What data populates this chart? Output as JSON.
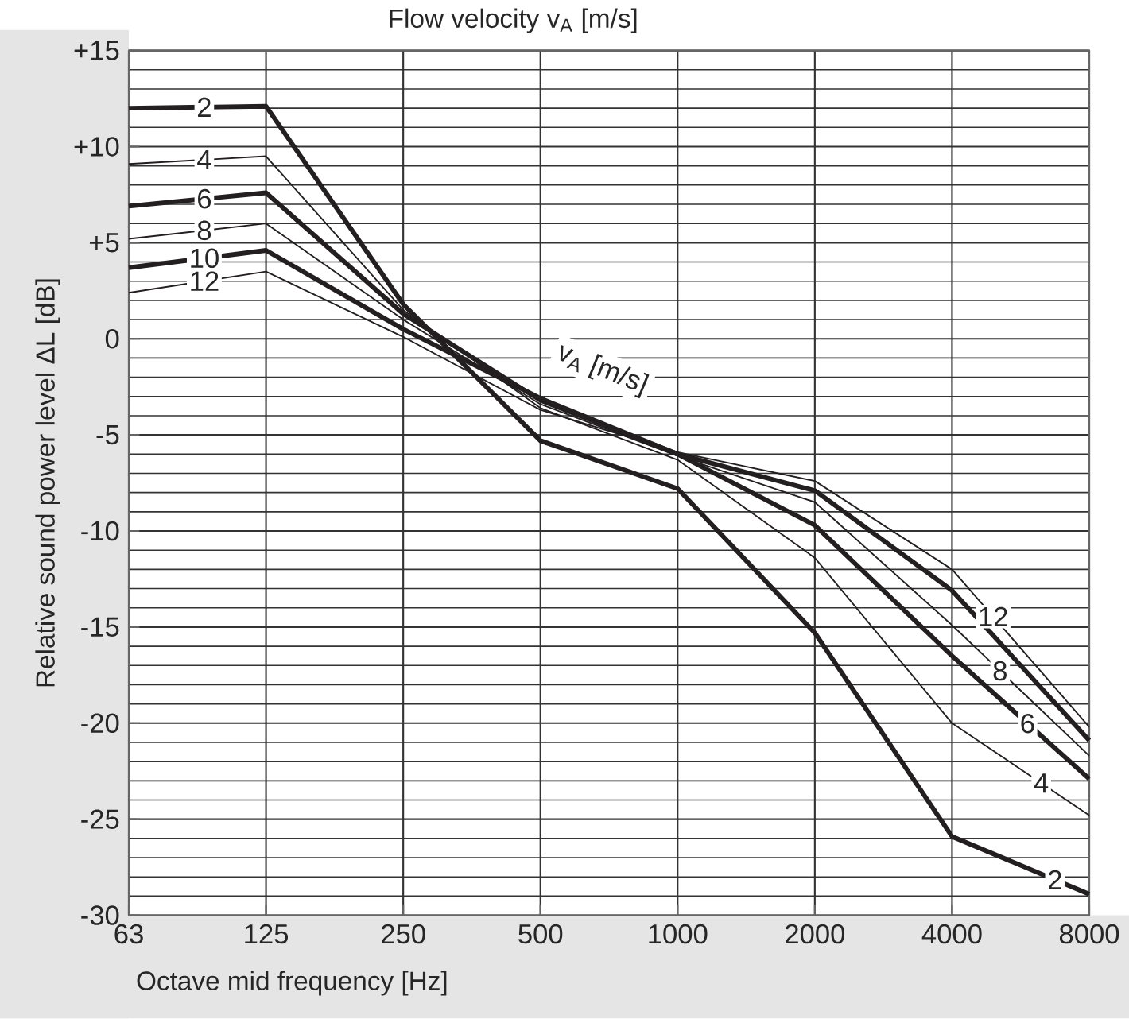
{
  "chart_data": {
    "type": "line",
    "title": "Flow velocity v$_{A}$ [m/s]",
    "xlabel": "Octave mid frequency [Hz]",
    "ylabel": "Relative sound power level ΔL [dB]",
    "categories": [
      "63",
      "125",
      "250",
      "500",
      "1000",
      "2000",
      "4000",
      "8000"
    ],
    "ylim": [
      -30,
      15
    ],
    "yticks": [
      {
        "value": 15,
        "label": "+15"
      },
      {
        "value": 10,
        "label": "+10"
      },
      {
        "value": 5,
        "label": "+5"
      },
      0,
      -5,
      -10,
      -15,
      -20,
      -25,
      -30
    ],
    "grid": true,
    "marker": "none",
    "line_style": "solid",
    "annotations": [
      "v$_{A}$ [m/s]"
    ],
    "series": [
      {
        "name": "2",
        "color": "#231f20",
        "values": [
          12,
          12.1,
          1.8,
          -5.3,
          -7.8,
          -15.3,
          -25.9,
          -28.9
        ]
      },
      {
        "name": "4",
        "color": "#231f20",
        "values": [
          9.1,
          9.5,
          1.5,
          -3.6,
          -6.3,
          -11.4,
          -20.0,
          -24.8
        ]
      },
      {
        "name": "6",
        "color": "#231f20",
        "values": [
          6.9,
          7.6,
          1.3,
          -3.2,
          -6.0,
          -9.7,
          -16.5,
          -22.9
        ]
      },
      {
        "name": "8",
        "color": "#231f20",
        "values": [
          5.2,
          6.0,
          1.0,
          -3.4,
          -6.1,
          -8.5,
          -14.9,
          -21.7
        ]
      },
      {
        "name": "10",
        "color": "#231f20",
        "values": [
          3.7,
          4.6,
          0.5,
          -3.1,
          -6.0,
          -7.9,
          -13.1,
          -20.9
        ]
      },
      {
        "name": "12",
        "color": "#231f20",
        "values": [
          2.4,
          3.5,
          0.1,
          -3.7,
          -5.9,
          -7.4,
          -12.0,
          -20.2
        ]
      }
    ]
  }
}
